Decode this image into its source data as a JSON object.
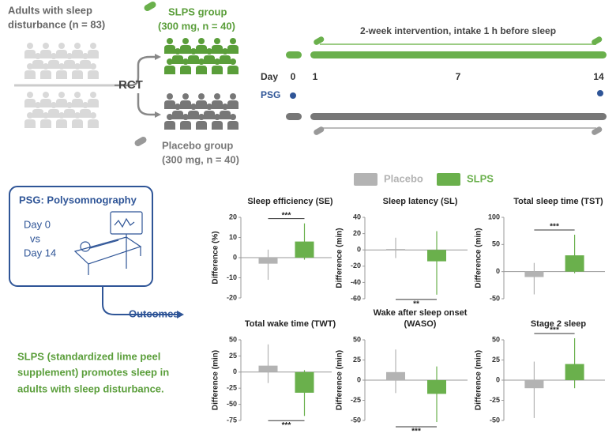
{
  "header": {
    "left_title": [
      "Adults with sleep",
      "disturbance (n = 83)"
    ],
    "rct": "RCT",
    "slps_group": [
      "SLPS group",
      "(300 mg, n = 40)"
    ],
    "placebo_group": [
      "Placebo group",
      "(300 mg, n = 40)"
    ]
  },
  "timeline": {
    "caption": "2-week intervention, intake 1 h before sleep",
    "day_label": "Day",
    "days": [
      "0",
      "1",
      "7",
      "14"
    ],
    "psg": "PSG"
  },
  "psg_box": {
    "title": "PSG: Polysomnography",
    "lines": [
      "Day 0",
      "vs",
      "Day 14"
    ]
  },
  "outcomes": "Outcomes",
  "conclusion": [
    "SLPS (standardized lime peel",
    "supplement) promotes sleep in",
    "adults with sleep disturbance."
  ],
  "legend": [
    {
      "name": "Placebo",
      "color": "#b3b3b3"
    },
    {
      "name": "SLPS",
      "color": "#6ab04c"
    }
  ],
  "chart_data": [
    {
      "type": "bar",
      "title": "Sleep efficiency (SE)",
      "ylabel": "Difference (%)",
      "ylim": [
        -20,
        20
      ],
      "yticks": [
        -20,
        -10,
        0,
        10,
        20
      ],
      "series": [
        {
          "values": [
            -3
          ],
          "low": [
            -11
          ],
          "high": [
            4
          ]
        },
        {
          "values": [
            8
          ],
          "low": [
            -1
          ],
          "high": [
            17
          ]
        }
      ],
      "significance": "***",
      "significance_side": "top"
    },
    {
      "type": "bar",
      "title": "Sleep latency (SL)",
      "ylabel": "Difference (min)",
      "ylim": [
        -60,
        40
      ],
      "yticks": [
        -60,
        -40,
        -20,
        0,
        20,
        40
      ],
      "series": [
        {
          "values": [
            1
          ],
          "low": [
            -10
          ],
          "high": [
            15
          ]
        },
        {
          "values": [
            -14
          ],
          "low": [
            -55
          ],
          "high": [
            23
          ]
        }
      ],
      "significance": "**",
      "significance_side": "bottom"
    },
    {
      "type": "bar",
      "title": "Total sleep time (TST)",
      "ylabel": "Difference (min)",
      "ylim": [
        -50,
        100
      ],
      "yticks": [
        -50,
        0,
        50,
        100
      ],
      "series": [
        {
          "values": [
            -10
          ],
          "low": [
            -42
          ],
          "high": [
            16
          ]
        },
        {
          "values": [
            30
          ],
          "low": [
            -3
          ],
          "high": [
            68
          ]
        }
      ],
      "significance": "***",
      "significance_side": "top"
    },
    {
      "type": "bar",
      "title": "Total wake time (TWT)",
      "ylabel": "Difference (min)",
      "ylim": [
        -75,
        50
      ],
      "yticks": [
        -75,
        -50,
        -25,
        0,
        25,
        50
      ],
      "series": [
        {
          "values": [
            10
          ],
          "low": [
            -17
          ],
          "high": [
            43
          ]
        },
        {
          "values": [
            -32
          ],
          "low": [
            -68
          ],
          "high": [
            3
          ]
        }
      ],
      "significance": "***",
      "significance_side": "bottom"
    },
    {
      "type": "bar",
      "title": "Wake after sleep onset (WASO)",
      "ylabel": "Difference (min)",
      "ylim": [
        -50,
        50
      ],
      "yticks": [
        -50,
        -25,
        0,
        25,
        50
      ],
      "series": [
        {
          "values": [
            10
          ],
          "low": [
            -16
          ],
          "high": [
            38
          ]
        },
        {
          "values": [
            -17
          ],
          "low": [
            -52
          ],
          "high": [
            17
          ]
        }
      ],
      "significance": "***",
      "significance_side": "bottom"
    },
    {
      "type": "bar",
      "title": "Stage 2 sleep",
      "ylabel": "Difference (min)",
      "ylim": [
        -50,
        50
      ],
      "yticks": [
        -50,
        -25,
        0,
        25,
        50
      ],
      "series": [
        {
          "values": [
            -10
          ],
          "low": [
            -47
          ],
          "high": [
            23
          ]
        },
        {
          "values": [
            20
          ],
          "low": [
            -10
          ],
          "high": [
            52
          ]
        }
      ],
      "significance": "***",
      "significance_side": "top"
    }
  ]
}
